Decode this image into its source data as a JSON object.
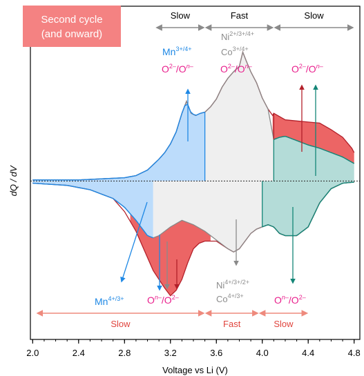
{
  "chart_data": {
    "type": "area",
    "xlabel": "Voltage vs Li (V)",
    "ylabel": "dQ / dV",
    "xlim": [
      1.98,
      4.85
    ],
    "ylim": [
      -1.45,
      1.6
    ],
    "xticks": [
      "2.0",
      "2.4",
      "2.8",
      "3.2",
      "3.6",
      "4.0",
      "4.4",
      "4.8"
    ],
    "xtick_values": [
      2.0,
      2.4,
      2.8,
      3.2,
      3.6,
      4.0,
      4.4,
      4.8
    ],
    "badge": {
      "line1": "Second cycle",
      "line2": "(and onward)"
    },
    "regions_top": [
      {
        "label": "Slow",
        "from": 3.07,
        "to": 3.5
      },
      {
        "label": "Fast",
        "from": 3.5,
        "to": 4.1
      },
      {
        "label": "Slow",
        "from": 4.1,
        "to": 4.8
      }
    ],
    "regions_bottom": [
      {
        "label": "Slow",
        "from": 2.03,
        "to": 3.5
      },
      {
        "label": "Fast",
        "from": 3.5,
        "to": 3.97
      },
      {
        "label": "Slow",
        "from": 3.97,
        "to": 4.4
      }
    ],
    "annotations": {
      "mn_top": {
        "el": "Mn",
        "sup": "3+/4+"
      },
      "o_pairs": [
        {
          "a": "O",
          "asup": "2–",
          "b": "/O",
          "bsup": "n–"
        },
        {
          "a": "O",
          "asup": "2–",
          "b": "/O",
          "bsup": "n–"
        },
        {
          "a": "O",
          "asup": "2–",
          "b": "/O",
          "bsup": "n–"
        }
      ],
      "ni_top": {
        "el": "Ni",
        "sup": "2+/3+/4+"
      },
      "co_top": {
        "el": "Co",
        "sup": "3+/4+"
      },
      "mn_bottom": {
        "el": "Mn",
        "sup": "4+/3+"
      },
      "o_bottom_left": {
        "a": "O",
        "asup": "n–",
        "b": "/O",
        "bsup": "2–"
      },
      "o_bottom_right": {
        "a": "O",
        "asup": "n–",
        "b": "/O",
        "bsup": "2–"
      },
      "ni_bottom": {
        "el": "Ni",
        "sup": "4+/3+/2+"
      },
      "co_bottom": {
        "el": "Co",
        "sup": "4+/3+"
      }
    },
    "series": [
      {
        "role": "charge-outer",
        "x": [
          2.0,
          2.4,
          2.8,
          2.9,
          3.0,
          3.05,
          3.1,
          3.15,
          3.2,
          3.25,
          3.3,
          3.34,
          3.38,
          3.42,
          3.46,
          3.5,
          3.55,
          3.6,
          3.65,
          3.7,
          3.75,
          3.8,
          3.83,
          3.86,
          3.9,
          3.95,
          4.0,
          4.05,
          4.09,
          4.1,
          4.2,
          4.3,
          4.4,
          4.5,
          4.6,
          4.7,
          4.78,
          4.8
        ],
        "y": [
          0.01,
          0.01,
          0.03,
          0.05,
          0.1,
          0.15,
          0.2,
          0.26,
          0.34,
          0.45,
          0.62,
          0.73,
          0.62,
          0.6,
          0.62,
          0.63,
          0.68,
          0.75,
          0.86,
          0.94,
          1.0,
          1.05,
          1.18,
          1.1,
          1.0,
          0.9,
          0.76,
          0.66,
          0.6,
          0.62,
          0.56,
          0.55,
          0.54,
          0.53,
          0.47,
          0.4,
          0.3,
          0.26
        ]
      },
      {
        "role": "charge-inner",
        "x": [
          2.0,
          2.4,
          2.8,
          2.9,
          3.0,
          3.05,
          3.1,
          3.15,
          3.2,
          3.25,
          3.3,
          3.34,
          3.38,
          3.42,
          3.46,
          3.5,
          3.55,
          3.6,
          3.65,
          3.7,
          3.75,
          3.8,
          3.83,
          3.86,
          3.9,
          3.95,
          4.0,
          4.05,
          4.1,
          4.15,
          4.2,
          4.3,
          4.4,
          4.5,
          4.6,
          4.7,
          4.8
        ],
        "y": [
          0.01,
          0.01,
          0.03,
          0.05,
          0.1,
          0.15,
          0.2,
          0.26,
          0.34,
          0.45,
          0.62,
          0.73,
          0.62,
          0.6,
          0.62,
          0.63,
          0.68,
          0.75,
          0.86,
          0.94,
          1.0,
          1.05,
          1.18,
          1.1,
          1.0,
          0.9,
          0.76,
          0.66,
          0.38,
          0.4,
          0.41,
          0.37,
          0.33,
          0.3,
          0.26,
          0.22,
          0.16
        ]
      },
      {
        "role": "discharge-outer",
        "x": [
          2.0,
          2.3,
          2.5,
          2.7,
          2.8,
          2.9,
          3.0,
          3.05,
          3.1,
          3.15,
          3.2,
          3.25,
          3.3,
          3.35,
          3.4,
          3.45,
          3.5,
          3.6,
          3.7,
          3.75,
          3.8,
          3.85,
          3.9,
          3.95,
          4.0,
          4.05,
          4.1,
          4.15,
          4.2,
          4.3,
          4.4,
          4.5,
          4.6,
          4.7,
          4.8
        ],
        "y": [
          -0.02,
          -0.04,
          -0.08,
          -0.16,
          -0.28,
          -0.46,
          -0.7,
          -0.82,
          -0.9,
          -0.98,
          -1.05,
          -1.0,
          -0.9,
          -0.75,
          -0.62,
          -0.57,
          -0.55,
          -0.55,
          -0.62,
          -0.65,
          -0.62,
          -0.55,
          -0.48,
          -0.44,
          -0.42,
          -0.4,
          -0.42,
          -0.48,
          -0.5,
          -0.5,
          -0.42,
          -0.2,
          -0.07,
          -0.02,
          -0.01
        ]
      },
      {
        "role": "discharge-inner",
        "x": [
          2.0,
          2.3,
          2.5,
          2.7,
          2.8,
          2.9,
          3.0,
          3.05,
          3.1,
          3.2,
          3.3,
          3.4,
          3.5,
          3.6,
          3.7,
          3.75,
          3.8,
          3.85,
          3.9,
          3.95,
          4.0,
          4.05,
          4.1,
          4.15,
          4.2,
          4.3,
          4.4,
          4.5,
          4.6,
          4.7,
          4.8
        ],
        "y": [
          -0.02,
          -0.04,
          -0.08,
          -0.16,
          -0.24,
          -0.36,
          -0.5,
          -0.52,
          -0.5,
          -0.42,
          -0.36,
          -0.4,
          -0.46,
          -0.54,
          -0.62,
          -0.65,
          -0.62,
          -0.55,
          -0.48,
          -0.44,
          -0.42,
          -0.4,
          -0.42,
          -0.48,
          -0.5,
          -0.5,
          -0.42,
          -0.2,
          -0.07,
          -0.02,
          -0.01
        ]
      }
    ]
  }
}
